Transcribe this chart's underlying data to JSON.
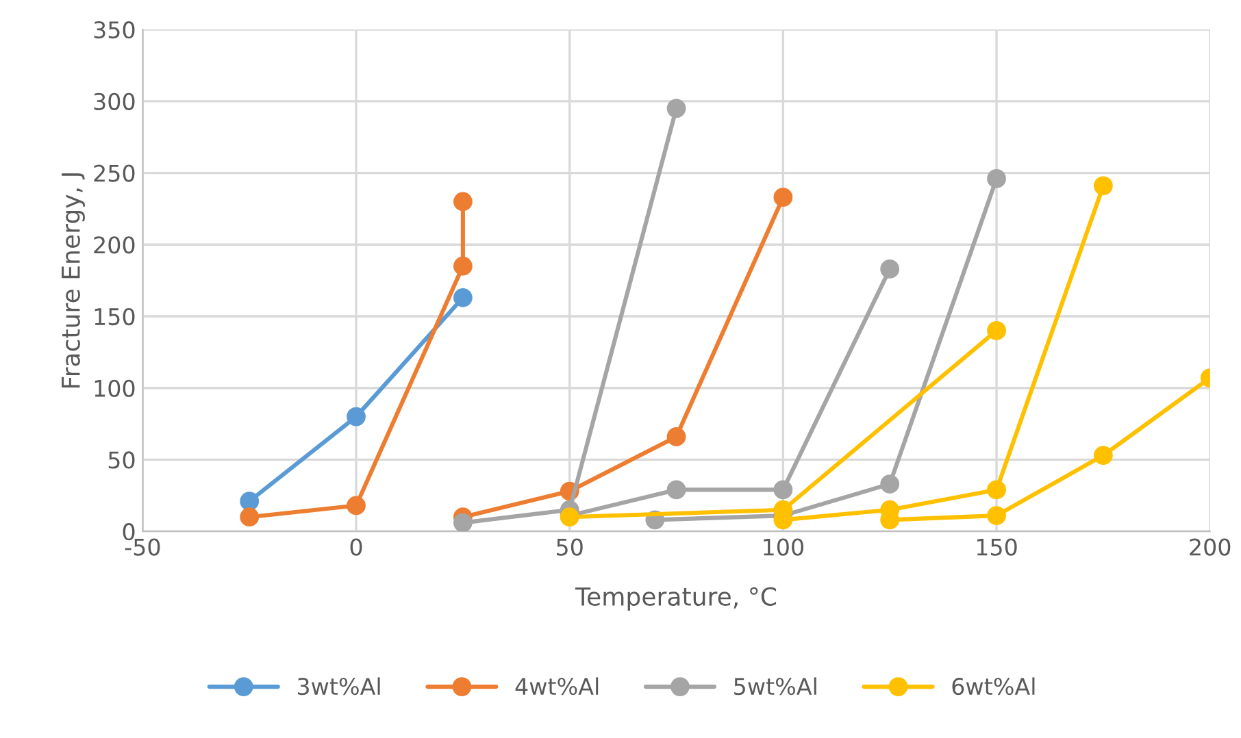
{
  "chart_data": {
    "type": "line",
    "xlabel": "Temperature, °C",
    "ylabel": "Fracture Energy, J",
    "xlim": [
      -50,
      200
    ],
    "xticks": [
      -50,
      0,
      50,
      100,
      150,
      200
    ],
    "ylim": [
      0,
      350
    ],
    "yticks": [
      0,
      50,
      100,
      150,
      200,
      250,
      300,
      350
    ],
    "grid": true,
    "legend": "bottom",
    "marker": "circle",
    "line_style": "solid",
    "series": [
      {
        "name": "3wt%Al",
        "color": "#5b9bd5",
        "x": [
          -25,
          0,
          25
        ],
        "values": [
          21,
          80,
          163
        ]
      },
      {
        "name": "4wt%Al",
        "color": "#ed7d31",
        "x": [
          -25,
          0,
          25,
          25
        ],
        "values": [
          10,
          18,
          185,
          230
        ]
      },
      {
        "color": "#ed7d31",
        "x": [
          25,
          50,
          75,
          100
        ],
        "values": [
          10,
          28,
          66,
          233
        ]
      },
      {
        "name": "5wt%Al",
        "color": "#a5a5a5",
        "x": [
          25,
          50,
          75
        ],
        "values": [
          6,
          15,
          295
        ]
      },
      {
        "color": "#a5a5a5",
        "x": [
          50,
          75,
          100,
          125
        ],
        "values": [
          11,
          29,
          29,
          183
        ]
      },
      {
        "color": "#a5a5a5",
        "x": [
          70,
          100,
          125,
          150
        ],
        "values": [
          8,
          11,
          33,
          246
        ]
      },
      {
        "name": "6wt%Al",
        "color": "#ffc000",
        "x": [
          50,
          100,
          150
        ],
        "values": [
          10,
          15,
          140
        ]
      },
      {
        "color": "#ffc000",
        "x": [
          100,
          125,
          150,
          175
        ],
        "values": [
          8,
          15,
          29,
          241
        ]
      },
      {
        "color": "#ffc000",
        "x": [
          125,
          150,
          175,
          200
        ],
        "values": [
          8,
          11,
          53,
          107
        ]
      }
    ]
  }
}
